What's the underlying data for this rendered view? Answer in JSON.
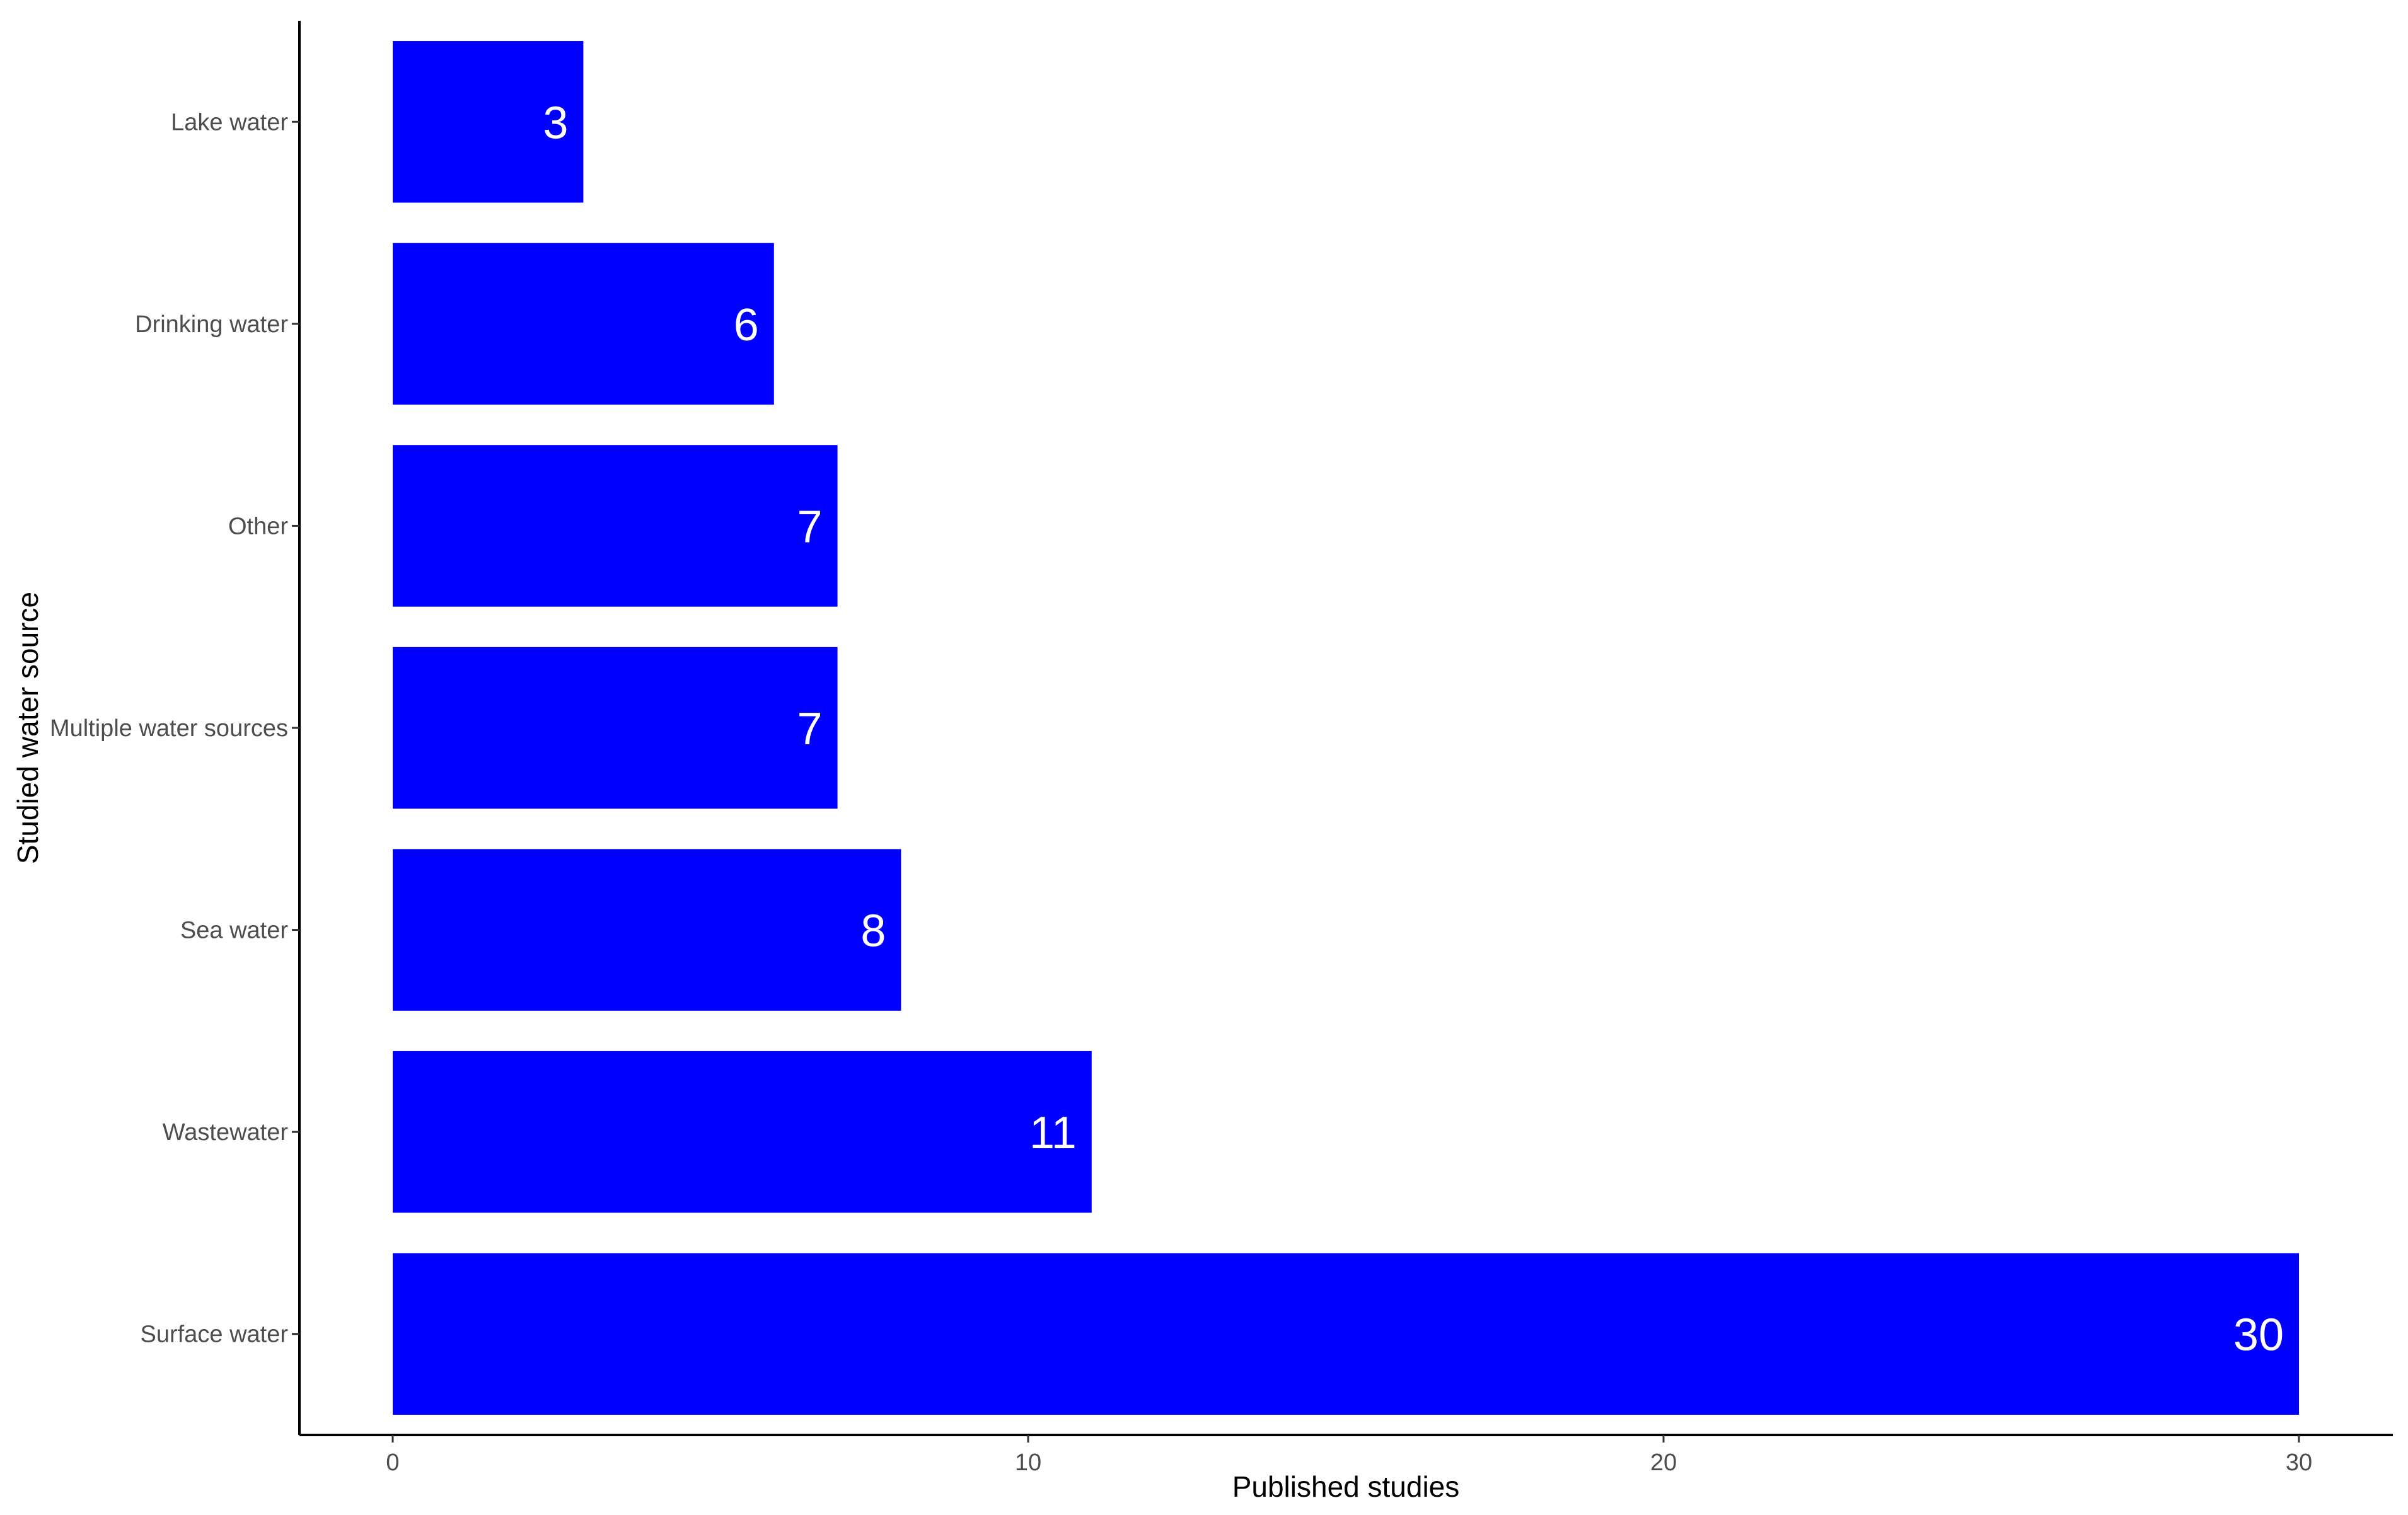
{
  "chart_data": {
    "type": "bar",
    "orientation": "horizontal",
    "categories": [
      "Lake water",
      "Drinking water",
      "Other",
      "Multiple water sources",
      "Sea water",
      "Wastewater",
      "Surface water"
    ],
    "values": [
      3,
      6,
      7,
      7,
      8,
      11,
      30
    ],
    "data_labels": [
      "3",
      "6",
      "7",
      "7",
      "8",
      "11",
      "30"
    ],
    "xlabel": "Published studies",
    "ylabel": "Studied water source",
    "xlim": [
      0,
      30
    ],
    "xticks": [
      0,
      10,
      20,
      30
    ],
    "xtick_labels": [
      "0",
      "10",
      "20",
      "30"
    ],
    "grid": false,
    "legend": "none",
    "colors": {
      "bar": "#0000ff",
      "data_label": "#ffffff",
      "axis": "#000000",
      "tick_label": "#4d4d4d",
      "background": "#ffffff"
    }
  }
}
